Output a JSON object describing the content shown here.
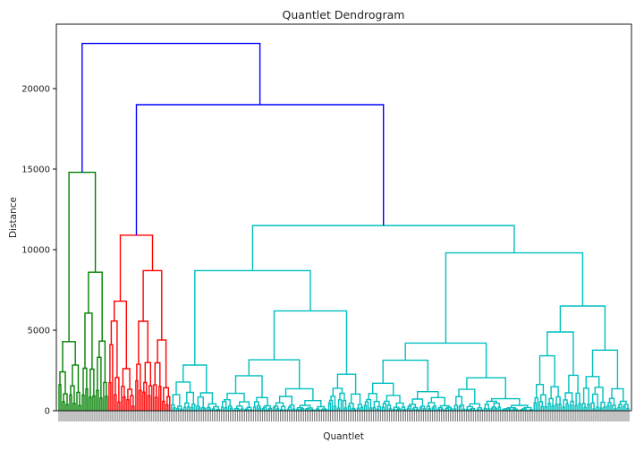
{
  "chart_data": {
    "type": "dendrogram",
    "title": "Quantlet Dendrogram",
    "xlabel": "Quantlet",
    "ylabel": "Distance",
    "ylim": [
      0,
      24000
    ],
    "yticks": [
      0,
      5000,
      10000,
      15000,
      20000
    ],
    "grid": false,
    "leaf_count": 320,
    "clusters": [
      {
        "color": "#008000",
        "leaf_range": [
          0,
          27
        ]
      },
      {
        "color": "#ff0000",
        "leaf_range": [
          28,
          62
        ]
      },
      {
        "color": "#00bfbf",
        "leaf_range": [
          63,
          319
        ]
      }
    ],
    "merges": [
      {
        "left": [
          6,
          8
        ],
        "right": [
          25,
          27
        ],
        "height": 14800,
        "color": "#008000",
        "left_h": 6300,
        "right_h": 8600
      },
      {
        "left": [
          32,
          36
        ],
        "right": [
          48,
          58
        ],
        "height": 10900,
        "color": "#ff0000",
        "left_h": 6800,
        "right_h": 8700
      },
      {
        "left": [
          97,
          120
        ],
        "right": [
          202,
          275
        ],
        "height": 11500,
        "color": "#00bfbf",
        "left_h": 8700,
        "right_h": 9800
      },
      {
        "left": [
          80,
          95
        ],
        "right": [
          160,
          180
        ],
        "height": 8700,
        "color": "#00bfbf",
        "left_h": 4100,
        "right_h": 6200
      },
      {
        "left": [
          155,
          170
        ],
        "right": [
          230,
          257
        ],
        "height": 9800,
        "color": "#00bfbf",
        "left_h": 4200,
        "right_h": 6500
      },
      {
        "left": [
          27,
          32
        ],
        "right": [
          67,
          130
        ],
        "height": 22800,
        "color": "#0000ff",
        "left_h": 14800,
        "right_h": 19000
      },
      {
        "left": [
          32,
          45
        ],
        "right": [
          97,
          160
        ],
        "height": 19000,
        "color": "#0000ff",
        "left_h": 10900,
        "right_h": 11500
      }
    ],
    "colors": {
      "above_threshold": "#0000ff",
      "cluster_1": "#008000",
      "cluster_2": "#ff0000",
      "cluster_3": "#00bfbf"
    }
  }
}
